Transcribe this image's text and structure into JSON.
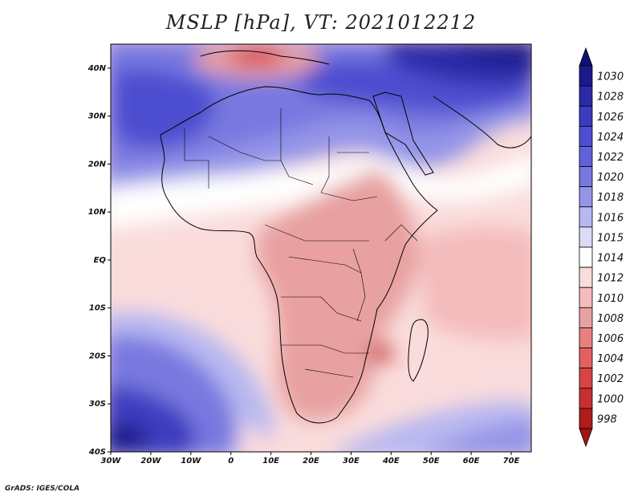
{
  "title": "MSLP [hPa], VT: 2021012212",
  "footer": "GrADS: IGES/COLA",
  "map": {
    "lon_ticks": [
      "30W",
      "20W",
      "10W",
      "0",
      "10E",
      "20E",
      "30E",
      "40E",
      "50E",
      "60E",
      "70E"
    ],
    "lat_ticks": [
      "40N",
      "30N",
      "20N",
      "10N",
      "EQ",
      "10S",
      "20S",
      "30S",
      "40S"
    ]
  },
  "colorbar": {
    "levels": [
      "1030",
      "1028",
      "1026",
      "1024",
      "1022",
      "1020",
      "1018",
      "1016",
      "1015",
      "1014",
      "1012",
      "1010",
      "1008",
      "1006",
      "1004",
      "1002",
      "1000",
      "998"
    ],
    "colors": [
      "#1a1a8c",
      "#2b2ba8",
      "#3c3cc0",
      "#4e4ed0",
      "#6262d8",
      "#7878e0",
      "#9494e8",
      "#b8b8f0",
      "#dcdcf8",
      "#ffffff",
      "#fadcdc",
      "#f4bcbc",
      "#e8a0a0",
      "#e88080",
      "#e46060",
      "#d84444",
      "#c83030",
      "#b01c1c"
    ],
    "top_color": "#101078",
    "bottom_color": "#a01414"
  }
}
